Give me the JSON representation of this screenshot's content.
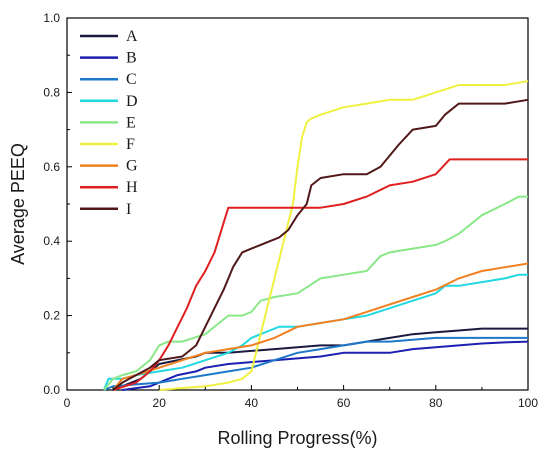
{
  "chart_data": {
    "type": "line",
    "xlabel": "Rolling Progress(%)",
    "ylabel": "Average PEEQ",
    "xlim": [
      0,
      100
    ],
    "ylim": [
      0,
      1.0
    ],
    "x_ticks": [
      "0",
      "20",
      "40",
      "60",
      "80",
      "100"
    ],
    "y_ticks": [
      "0.0",
      "0.2",
      "0.4",
      "0.6",
      "0.8",
      "1.0"
    ],
    "legend_placement": "top-left",
    "series": [
      {
        "name": "A",
        "color": "#1a1a40",
        "x": [
          10,
          12,
          14,
          16,
          18,
          20,
          24,
          28,
          30,
          35,
          40,
          45,
          50,
          55,
          60,
          65,
          70,
          75,
          80,
          85,
          90,
          95,
          100
        ],
        "y": [
          0,
          0.01,
          0.02,
          0.03,
          0.05,
          0.07,
          0.08,
          0.09,
          0.1,
          0.1,
          0.105,
          0.11,
          0.115,
          0.12,
          0.12,
          0.13,
          0.14,
          0.15,
          0.155,
          0.16,
          0.165,
          0.165,
          0.165
        ]
      },
      {
        "name": "B",
        "color": "#1c1fb0",
        "x": [
          12,
          15,
          18,
          20,
          22,
          24,
          28,
          30,
          35,
          40,
          45,
          50,
          55,
          60,
          65,
          70,
          75,
          80,
          85,
          90,
          95,
          100
        ],
        "y": [
          0,
          0.005,
          0.01,
          0.02,
          0.03,
          0.04,
          0.05,
          0.06,
          0.07,
          0.075,
          0.08,
          0.085,
          0.09,
          0.1,
          0.1,
          0.1,
          0.11,
          0.115,
          0.12,
          0.125,
          0.128,
          0.13
        ]
      },
      {
        "name": "C",
        "color": "#1e78c8",
        "x": [
          8,
          10,
          15,
          20,
          25,
          30,
          35,
          40,
          45,
          50,
          55,
          60,
          65,
          70,
          75,
          80,
          85,
          90,
          95,
          100
        ],
        "y": [
          0,
          0.01,
          0.015,
          0.02,
          0.03,
          0.04,
          0.05,
          0.06,
          0.08,
          0.1,
          0.11,
          0.12,
          0.13,
          0.13,
          0.135,
          0.14,
          0.14,
          0.14,
          0.14,
          0.14
        ]
      },
      {
        "name": "D",
        "color": "#22d8e0",
        "x": [
          8,
          9,
          12,
          15,
          20,
          25,
          30,
          35,
          38,
          40,
          42,
          44,
          46,
          50,
          55,
          60,
          65,
          70,
          75,
          80,
          82,
          85,
          90,
          95,
          98,
          100
        ],
        "y": [
          0,
          0.03,
          0.03,
          0.04,
          0.05,
          0.06,
          0.08,
          0.1,
          0.12,
          0.14,
          0.15,
          0.16,
          0.17,
          0.17,
          0.18,
          0.19,
          0.2,
          0.22,
          0.24,
          0.26,
          0.28,
          0.28,
          0.29,
          0.3,
          0.31,
          0.31
        ]
      },
      {
        "name": "E",
        "color": "#8ae888",
        "x": [
          8,
          10,
          12,
          15,
          18,
          20,
          22,
          25,
          30,
          33,
          35,
          38,
          40,
          42,
          45,
          50,
          55,
          60,
          65,
          68,
          70,
          75,
          80,
          82,
          85,
          88,
          90,
          95,
          98,
          100
        ],
        "y": [
          0,
          0.03,
          0.04,
          0.05,
          0.08,
          0.12,
          0.13,
          0.13,
          0.15,
          0.18,
          0.2,
          0.2,
          0.21,
          0.24,
          0.25,
          0.26,
          0.3,
          0.31,
          0.32,
          0.36,
          0.37,
          0.38,
          0.39,
          0.4,
          0.42,
          0.45,
          0.47,
          0.5,
          0.52,
          0.52
        ]
      },
      {
        "name": "F",
        "color": "#f0f040",
        "x": [
          20,
          25,
          30,
          35,
          38,
          40,
          41,
          42,
          43,
          45,
          47,
          49,
          50,
          51,
          52,
          53,
          55,
          60,
          65,
          70,
          75,
          80,
          85,
          90,
          95,
          100
        ],
        "y": [
          0,
          0.005,
          0.01,
          0.02,
          0.03,
          0.05,
          0.1,
          0.15,
          0.2,
          0.3,
          0.4,
          0.5,
          0.6,
          0.68,
          0.72,
          0.73,
          0.74,
          0.76,
          0.77,
          0.78,
          0.78,
          0.8,
          0.82,
          0.82,
          0.82,
          0.83
        ]
      },
      {
        "name": "G",
        "color": "#f08020",
        "x": [
          10,
          12,
          15,
          20,
          25,
          30,
          35,
          40,
          45,
          50,
          55,
          60,
          65,
          70,
          75,
          80,
          85,
          90,
          95,
          100
        ],
        "y": [
          0,
          0.03,
          0.04,
          0.06,
          0.08,
          0.1,
          0.11,
          0.12,
          0.14,
          0.17,
          0.18,
          0.19,
          0.21,
          0.23,
          0.25,
          0.27,
          0.3,
          0.32,
          0.33,
          0.34
        ]
      },
      {
        "name": "H",
        "color": "#e02020",
        "x": [
          10,
          15,
          18,
          20,
          22,
          24,
          26,
          28,
          30,
          32,
          34,
          35,
          40,
          45,
          50,
          55,
          60,
          65,
          70,
          75,
          80,
          83,
          85,
          90,
          95,
          100
        ],
        "y": [
          0,
          0.02,
          0.05,
          0.08,
          0.12,
          0.17,
          0.22,
          0.28,
          0.32,
          0.37,
          0.45,
          0.49,
          0.49,
          0.49,
          0.49,
          0.49,
          0.5,
          0.52,
          0.55,
          0.56,
          0.58,
          0.62,
          0.62,
          0.62,
          0.62,
          0.62
        ]
      },
      {
        "name": "I",
        "color": "#501818",
        "x": [
          10,
          12,
          15,
          18,
          20,
          25,
          28,
          30,
          32,
          34,
          36,
          38,
          40,
          42,
          44,
          46,
          48,
          50,
          52,
          53,
          55,
          60,
          65,
          68,
          70,
          72,
          75,
          80,
          82,
          85,
          90,
          95,
          100
        ],
        "y": [
          0,
          0.02,
          0.04,
          0.06,
          0.08,
          0.09,
          0.12,
          0.17,
          0.22,
          0.27,
          0.33,
          0.37,
          0.38,
          0.39,
          0.4,
          0.41,
          0.43,
          0.47,
          0.5,
          0.55,
          0.57,
          0.58,
          0.58,
          0.6,
          0.63,
          0.66,
          0.7,
          0.71,
          0.74,
          0.77,
          0.77,
          0.77,
          0.78
        ]
      }
    ]
  }
}
